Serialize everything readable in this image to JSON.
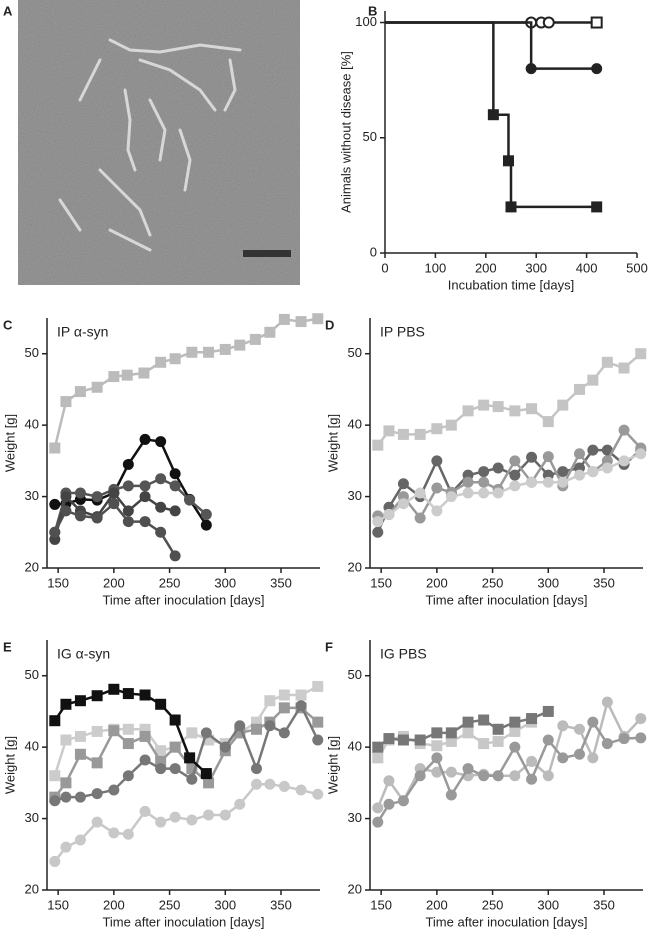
{
  "image": {
    "panel": "A"
  },
  "chart_data": [
    {
      "type": "step",
      "panel": "B",
      "xlabel": "Incubation time [days]",
      "ylabel": "Animals without disease [%]",
      "xlim": [
        0,
        500
      ],
      "ylim": [
        0,
        105
      ],
      "xticks": [
        0,
        100,
        200,
        300,
        400,
        500
      ],
      "yticks": [
        0,
        50,
        100
      ],
      "series": [
        {
          "color": "#222222",
          "x": [
            0,
            290,
            310,
            325,
            420
          ],
          "values": [
            100,
            100,
            100,
            100,
            100
          ],
          "markers": [
            null,
            "circle-open",
            "circle-open",
            "circle-open",
            "square-open"
          ]
        },
        {
          "color": "#222222",
          "x": [
            0,
            290,
            420
          ],
          "values": [
            100,
            80,
            80
          ],
          "markers": [
            null,
            "circle",
            "circle"
          ]
        },
        {
          "color": "#222222",
          "x": [
            0,
            215,
            245,
            250,
            420
          ],
          "values": [
            100,
            60,
            40,
            20,
            20
          ],
          "markers": [
            null,
            "square",
            "square",
            "square",
            "square"
          ]
        }
      ]
    },
    {
      "type": "line",
      "panel": "C",
      "title": "IP α-syn",
      "xlabel": "Time after inoculation [days]",
      "ylabel": "Weight [g]",
      "xlim": [
        140,
        385
      ],
      "ylim": [
        20,
        55
      ],
      "xticks": [
        150,
        200,
        250,
        300,
        350
      ],
      "yticks": [
        20,
        30,
        40,
        50
      ],
      "series": [
        {
          "color": "#bbbbbb",
          "marker": "square",
          "x": [
            147,
            157,
            170,
            185,
            200,
            212,
            227,
            242,
            255,
            270,
            285,
            300,
            313,
            327,
            340,
            353,
            368,
            383
          ],
          "values": [
            36.8,
            43.3,
            44.7,
            45.3,
            46.8,
            47,
            47.3,
            48.8,
            49.3,
            50.2,
            50.2,
            50.6,
            51.2,
            52,
            53,
            54.8,
            54.5,
            54.9
          ]
        },
        {
          "color": "#111111",
          "marker": "circle",
          "x": [
            147,
            157,
            170,
            185,
            200,
            213,
            228,
            242,
            255,
            268,
            283
          ],
          "values": [
            28.9,
            29,
            29.6,
            29.5,
            30.5,
            34.5,
            38,
            37.7,
            33.2,
            29.6,
            26
          ]
        },
        {
          "color": "#555555",
          "marker": "circle",
          "x": [
            147,
            157,
            170,
            185,
            200,
            213,
            228,
            242,
            255,
            268,
            283
          ],
          "values": [
            25,
            30.5,
            30.5,
            30,
            31,
            31.5,
            31.5,
            32.5,
            31.5,
            29.5,
            27.5
          ]
        },
        {
          "color": "#444444",
          "marker": "circle",
          "x": [
            147,
            157,
            170,
            185,
            200,
            213,
            228,
            242,
            255
          ],
          "values": [
            24,
            30,
            28,
            27.2,
            30.5,
            28,
            30,
            28.5,
            28
          ]
        },
        {
          "color": "#505050",
          "marker": "circle",
          "x": [
            147,
            157,
            170,
            185,
            200,
            213,
            228,
            242,
            255
          ],
          "values": [
            25,
            28,
            27.3,
            27,
            29,
            26.5,
            26.5,
            25,
            21.7
          ]
        }
      ]
    },
    {
      "type": "line",
      "panel": "D",
      "title": "IP PBS",
      "xlabel": "Time after inoculation [days]",
      "ylabel": "Weight [g]",
      "xlim": [
        140,
        385
      ],
      "ylim": [
        20,
        55
      ],
      "xticks": [
        150,
        200,
        250,
        300,
        350
      ],
      "yticks": [
        20,
        30,
        40,
        50
      ],
      "series": [
        {
          "color": "#c4c4c4",
          "marker": "square",
          "x": [
            147,
            157,
            170,
            185,
            200,
            213,
            228,
            242,
            255,
            270,
            285,
            300,
            313,
            328,
            340,
            353,
            368,
            383
          ],
          "values": [
            37.2,
            39.2,
            38.7,
            38.7,
            39.5,
            40,
            42,
            42.8,
            42.6,
            42,
            42.3,
            40.5,
            42.8,
            45,
            46.3,
            48.8,
            48,
            50
          ]
        },
        {
          "color": "#666666",
          "marker": "circle",
          "x": [
            147,
            157,
            170,
            185,
            200,
            213,
            228,
            242,
            255,
            270,
            285,
            300,
            313,
            328,
            340,
            353,
            368,
            383
          ],
          "values": [
            25,
            28.5,
            31.8,
            30,
            35,
            30.5,
            33,
            33.5,
            34,
            33,
            35.5,
            33,
            33.5,
            34,
            36.5,
            36.5,
            34.5,
            36.5
          ]
        },
        {
          "color": "#999999",
          "marker": "circle",
          "x": [
            147,
            157,
            170,
            185,
            200,
            213,
            228,
            242,
            255,
            270,
            285,
            300,
            313,
            328,
            340,
            353,
            368,
            383
          ],
          "values": [
            27.3,
            27.5,
            30,
            27,
            31.2,
            30.6,
            32,
            32,
            31,
            35,
            32,
            35.6,
            31.5,
            36,
            33.5,
            35,
            39.3,
            36.8
          ]
        },
        {
          "color": "#cccccc",
          "marker": "circle",
          "x": [
            147,
            157,
            170,
            185,
            200,
            213,
            228,
            242,
            255,
            270,
            285,
            300,
            313,
            328,
            340,
            353,
            368,
            383
          ],
          "values": [
            26.5,
            27.5,
            29,
            30.5,
            28,
            30,
            30.5,
            30.5,
            30.5,
            31.5,
            32,
            32,
            32,
            33,
            33.5,
            34,
            35,
            36
          ]
        }
      ]
    },
    {
      "type": "line",
      "panel": "E",
      "title": "IG α-syn",
      "xlabel": "Time after inoculation [days]",
      "ylabel": "Weight [g]",
      "xlim": [
        140,
        385
      ],
      "ylim": [
        20,
        55
      ],
      "xticks": [
        150,
        200,
        250,
        300,
        350
      ],
      "yticks": [
        20,
        30,
        40,
        50
      ],
      "series": [
        {
          "color": "#cccccc",
          "marker": "square",
          "x": [
            147,
            157,
            170,
            185,
            200,
            213,
            228,
            242,
            255,
            270,
            285,
            300,
            313,
            328,
            340,
            353,
            368,
            383
          ],
          "values": [
            36,
            41,
            41.5,
            42.2,
            42.5,
            42.5,
            42.5,
            39.5,
            40,
            42,
            41,
            40.5,
            42,
            43.5,
            46.5,
            47.3,
            47.3,
            48.5
          ]
        },
        {
          "color": "#999999",
          "marker": "square",
          "x": [
            147,
            157,
            170,
            185,
            200,
            213,
            228,
            242,
            255,
            270,
            285,
            300,
            313,
            328,
            340,
            353,
            368,
            383
          ],
          "values": [
            33,
            35,
            39,
            37.8,
            42.3,
            40.5,
            41.5,
            38,
            40,
            37,
            35,
            39.5,
            42,
            42.5,
            43.5,
            45.5,
            45.5,
            43.5
          ]
        },
        {
          "color": "#777777",
          "marker": "circle",
          "x": [
            147,
            157,
            170,
            185,
            200,
            213,
            228,
            242,
            255,
            270,
            283,
            300,
            313,
            328,
            340,
            353,
            368,
            383
          ],
          "values": [
            32.5,
            33,
            33,
            33.5,
            34,
            36,
            38.2,
            37,
            37,
            35.5,
            42,
            40,
            43,
            37,
            43,
            42,
            45.8,
            41
          ]
        },
        {
          "color": "#c8c8c8",
          "marker": "circle",
          "x": [
            147,
            157,
            170,
            185,
            200,
            213,
            228,
            242,
            255,
            270,
            285,
            300,
            313,
            328,
            340,
            353,
            368,
            383
          ],
          "values": [
            24,
            26,
            27,
            29.5,
            28,
            27.8,
            31,
            29.5,
            30.2,
            29.8,
            30.5,
            30.5,
            32,
            34.8,
            34.8,
            34.5,
            34,
            33.4
          ]
        },
        {
          "color": "#111111",
          "marker": "square",
          "x": [
            147,
            157,
            170,
            185,
            200,
            213,
            228,
            242,
            255,
            268,
            283
          ],
          "values": [
            43.7,
            46,
            46.5,
            47.2,
            48.1,
            47.5,
            47.3,
            46,
            43.8,
            38.5,
            36.3
          ]
        }
      ]
    },
    {
      "type": "line",
      "panel": "F",
      "title": "IG PBS",
      "xlabel": "Time after inoculation [days]",
      "ylabel": "Weight [g]",
      "xlim": [
        140,
        385
      ],
      "ylim": [
        20,
        55
      ],
      "xticks": [
        150,
        200,
        250,
        300,
        350
      ],
      "yticks": [
        20,
        30,
        40,
        50
      ],
      "series": [
        {
          "color": "#bbbbbb",
          "marker": "circle",
          "x": [
            147,
            157,
            170,
            185,
            200,
            213,
            228,
            242,
            255,
            270,
            285,
            300,
            313,
            328,
            340,
            353,
            368,
            383
          ],
          "values": [
            31.5,
            35.3,
            32.5,
            37,
            36.5,
            36.5,
            36,
            36.2,
            36,
            36,
            38,
            36,
            43,
            42.5,
            38.5,
            46.3,
            41.5,
            44
          ]
        },
        {
          "color": "#999999",
          "marker": "circle",
          "x": [
            147,
            157,
            170,
            185,
            200,
            213,
            228,
            242,
            255,
            270,
            285,
            300,
            313,
            328,
            340,
            353,
            368,
            383
          ],
          "values": [
            29.5,
            32,
            32.5,
            36,
            38.5,
            33.3,
            37,
            36,
            36,
            40,
            35.5,
            41,
            38.5,
            39,
            43.5,
            40.5,
            41.2,
            41.3
          ]
        },
        {
          "color": "#c8c8c8",
          "marker": "square",
          "x": [
            147,
            157,
            170,
            185,
            200,
            213,
            228,
            242,
            255,
            270,
            285
          ],
          "values": [
            38.5,
            41,
            41.5,
            40.5,
            40.2,
            40.8,
            42,
            40.5,
            40.8,
            42.2,
            43.5
          ]
        },
        {
          "color": "#777777",
          "marker": "square",
          "x": [
            147,
            157,
            170,
            185,
            200,
            213,
            228,
            242,
            255,
            270,
            285,
            300
          ],
          "values": [
            40,
            41.2,
            41,
            41,
            42,
            42,
            43.5,
            43.8,
            42.5,
            43.5,
            44,
            45
          ]
        }
      ]
    }
  ]
}
